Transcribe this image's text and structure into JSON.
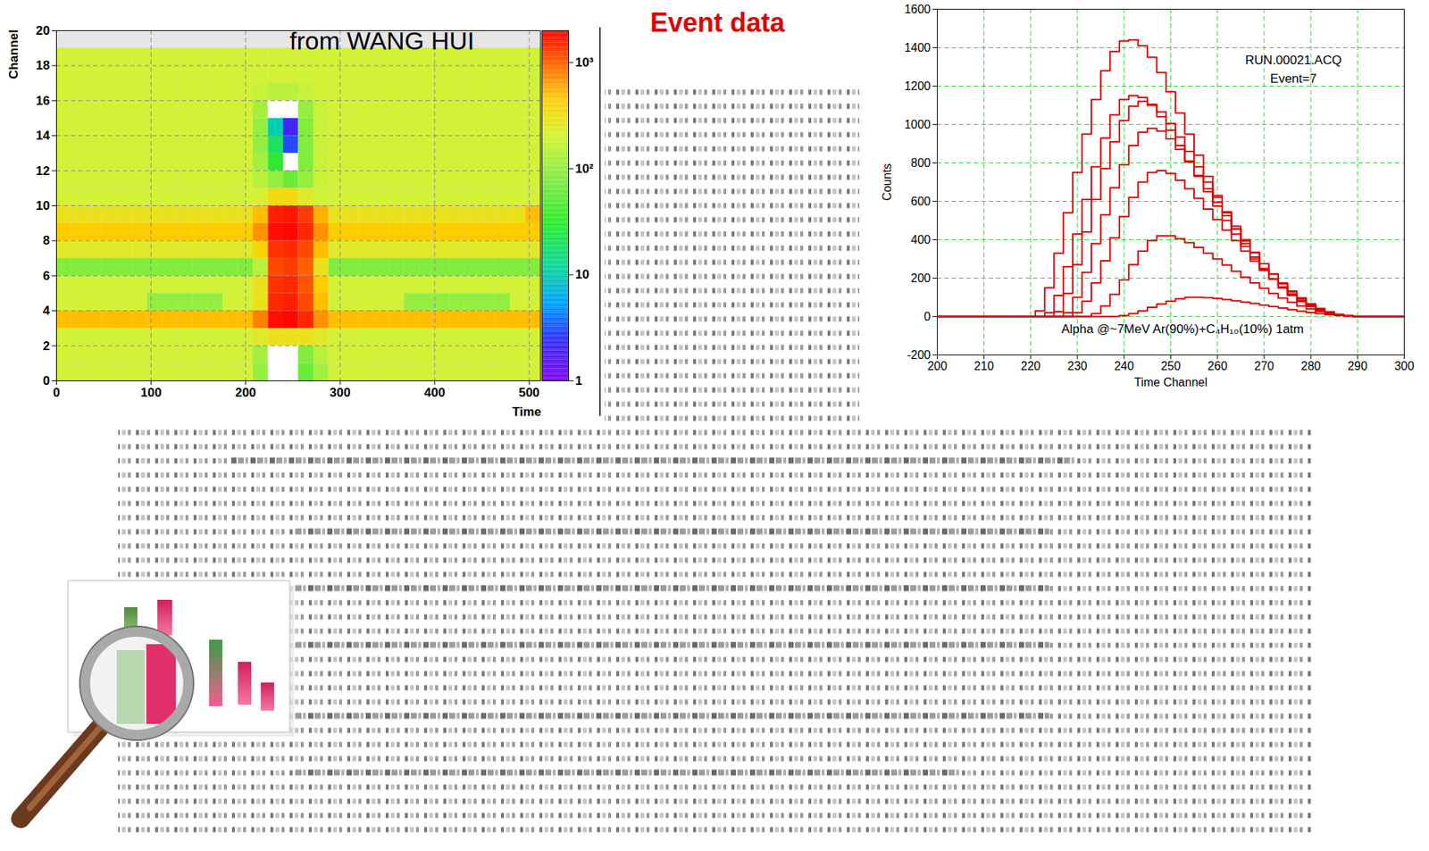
{
  "title": "Event data",
  "chart_data": [
    {
      "type": "heatmap",
      "annotation": "from WANG HUI",
      "x_label": "Time",
      "y_label": "Channel",
      "xlim": [
        0,
        512
      ],
      "xticks": [
        0,
        100,
        200,
        300,
        400,
        500
      ],
      "ylim": [
        0,
        20
      ],
      "yticks": [
        0,
        2,
        4,
        6,
        8,
        10,
        12,
        14,
        16,
        18,
        20
      ],
      "grid": true,
      "x_bins": [
        0,
        16,
        32,
        48,
        64,
        80,
        96,
        112,
        128,
        144,
        160,
        176,
        192,
        208,
        224,
        240,
        256,
        272,
        288,
        304,
        320,
        336,
        352,
        368,
        384,
        400,
        416,
        432,
        448,
        464,
        480,
        496,
        512
      ],
      "y_bins": [
        0,
        1,
        2,
        3,
        4,
        5,
        6,
        7,
        8,
        9,
        10,
        11,
        12,
        13,
        14,
        15,
        16,
        17,
        18,
        19
      ],
      "cells": [
        [
          200,
          200,
          200,
          200,
          200,
          200,
          200,
          200,
          200,
          200,
          200,
          200,
          200,
          100,
          0,
          0,
          60,
          120,
          200,
          200,
          200,
          200,
          200,
          200,
          200,
          200,
          200,
          200,
          200,
          200,
          200,
          200
        ],
        [
          200,
          200,
          200,
          200,
          200,
          200,
          200,
          200,
          200,
          200,
          200,
          200,
          200,
          120,
          0,
          0,
          80,
          150,
          200,
          200,
          200,
          200,
          200,
          200,
          200,
          200,
          200,
          200,
          200,
          200,
          200,
          200
        ],
        [
          200,
          200,
          200,
          200,
          200,
          200,
          200,
          200,
          200,
          200,
          200,
          200,
          200,
          250,
          300,
          300,
          300,
          250,
          200,
          200,
          200,
          200,
          200,
          200,
          200,
          200,
          200,
          200,
          200,
          200,
          200,
          200
        ],
        [
          500,
          500,
          500,
          500,
          500,
          500,
          500,
          500,
          500,
          500,
          500,
          500,
          500,
          800,
          1800,
          1900,
          1500,
          700,
          500,
          500,
          500,
          500,
          500,
          500,
          500,
          500,
          500,
          500,
          500,
          500,
          500,
          500
        ],
        [
          200,
          200,
          200,
          200,
          200,
          200,
          100,
          100,
          100,
          100,
          100,
          200,
          200,
          300,
          1500,
          1600,
          1200,
          500,
          200,
          200,
          200,
          200,
          200,
          100,
          100,
          100,
          100,
          100,
          100,
          100,
          200,
          200
        ],
        [
          200,
          200,
          200,
          200,
          200,
          200,
          200,
          200,
          200,
          200,
          200,
          200,
          200,
          300,
          1400,
          1500,
          1100,
          450,
          200,
          200,
          200,
          200,
          200,
          200,
          200,
          200,
          200,
          200,
          200,
          200,
          200,
          200
        ],
        [
          80,
          80,
          80,
          80,
          80,
          80,
          80,
          80,
          80,
          80,
          80,
          80,
          80,
          150,
          1200,
          1300,
          1000,
          300,
          80,
          80,
          80,
          80,
          80,
          80,
          80,
          80,
          80,
          80,
          80,
          80,
          80,
          80
        ],
        [
          250,
          250,
          250,
          250,
          250,
          250,
          250,
          250,
          250,
          250,
          250,
          250,
          250,
          400,
          1400,
          1500,
          1200,
          500,
          250,
          250,
          250,
          250,
          250,
          250,
          250,
          250,
          250,
          250,
          250,
          250,
          250,
          250
        ],
        [
          450,
          450,
          450,
          450,
          450,
          450,
          450,
          450,
          450,
          450,
          450,
          450,
          450,
          700,
          1800,
          1900,
          1500,
          700,
          450,
          450,
          450,
          450,
          450,
          450,
          450,
          450,
          450,
          450,
          450,
          450,
          450,
          450
        ],
        [
          300,
          300,
          300,
          300,
          300,
          300,
          300,
          300,
          300,
          300,
          300,
          300,
          300,
          500,
          1600,
          1700,
          1300,
          550,
          300,
          300,
          300,
          300,
          300,
          300,
          300,
          300,
          300,
          300,
          300,
          300,
          300,
          500
        ],
        [
          200,
          200,
          200,
          200,
          200,
          200,
          200,
          200,
          200,
          200,
          200,
          200,
          200,
          220,
          350,
          350,
          250,
          200,
          200,
          200,
          200,
          200,
          200,
          200,
          200,
          200,
          200,
          200,
          200,
          200,
          200,
          200
        ],
        [
          200,
          200,
          200,
          200,
          200,
          200,
          200,
          200,
          200,
          200,
          200,
          200,
          200,
          150,
          100,
          60,
          100,
          180,
          200,
          200,
          200,
          200,
          200,
          200,
          200,
          200,
          200,
          200,
          200,
          200,
          200,
          200
        ],
        [
          200,
          200,
          200,
          200,
          200,
          200,
          200,
          200,
          200,
          200,
          200,
          200,
          200,
          120,
          30,
          0,
          80,
          180,
          200,
          200,
          200,
          200,
          200,
          200,
          200,
          200,
          200,
          200,
          200,
          200,
          200,
          200
        ],
        [
          200,
          200,
          200,
          200,
          200,
          200,
          200,
          200,
          200,
          200,
          200,
          200,
          200,
          100,
          20,
          3,
          80,
          180,
          200,
          200,
          200,
          200,
          200,
          200,
          200,
          200,
          200,
          200,
          200,
          200,
          200,
          200
        ],
        [
          200,
          200,
          200,
          200,
          200,
          200,
          200,
          200,
          200,
          200,
          200,
          200,
          200,
          100,
          10,
          2,
          80,
          180,
          200,
          200,
          200,
          200,
          200,
          200,
          200,
          200,
          200,
          200,
          200,
          200,
          200,
          200
        ],
        [
          200,
          200,
          200,
          200,
          200,
          200,
          200,
          200,
          200,
          200,
          200,
          200,
          200,
          120,
          0,
          0,
          100,
          180,
          200,
          200,
          200,
          200,
          200,
          200,
          200,
          200,
          200,
          200,
          200,
          200,
          200,
          200
        ],
        [
          200,
          200,
          200,
          200,
          200,
          200,
          200,
          200,
          200,
          200,
          200,
          200,
          200,
          180,
          150,
          150,
          180,
          200,
          200,
          200,
          200,
          200,
          200,
          200,
          200,
          200,
          200,
          200,
          200,
          200,
          200,
          200
        ],
        [
          200,
          200,
          200,
          200,
          200,
          200,
          200,
          200,
          200,
          200,
          200,
          200,
          200,
          200,
          200,
          200,
          200,
          200,
          200,
          200,
          200,
          200,
          200,
          200,
          200,
          200,
          200,
          200,
          200,
          200,
          200,
          200
        ],
        [
          200,
          200,
          200,
          200,
          200,
          200,
          200,
          200,
          200,
          200,
          200,
          200,
          200,
          200,
          200,
          200,
          200,
          200,
          200,
          200,
          200,
          200,
          200,
          200,
          200,
          200,
          200,
          200,
          200,
          200,
          200,
          200
        ]
      ],
      "colorbar_lim": [
        1,
        2000
      ],
      "colorbar_ticks": [
        1,
        10,
        {
          "value": 100,
          "label": "10²"
        },
        {
          "value": 1000,
          "label": "10³"
        }
      ]
    },
    {
      "type": "line",
      "x_label": "Time Channel",
      "y_label": "Counts",
      "annotations": [
        "RUN.00021.ACQ",
        "Event=7",
        "Alpha @~7MeV Ar(90%)+C₄H₁₀(10%) 1atm"
      ],
      "xlim": [
        200,
        300
      ],
      "xticks": [
        200,
        210,
        220,
        230,
        240,
        250,
        260,
        270,
        280,
        290,
        300
      ],
      "ylim": [
        -200,
        1600
      ],
      "yticks": [
        -200,
        0,
        200,
        400,
        600,
        800,
        1000,
        1200,
        1400,
        1600
      ],
      "grid": true,
      "x": [
        200,
        202,
        204,
        206,
        208,
        210,
        212,
        214,
        216,
        218,
        220,
        222,
        224,
        226,
        228,
        230,
        232,
        234,
        236,
        238,
        240,
        242,
        244,
        246,
        248,
        250,
        252,
        254,
        256,
        258,
        260,
        262,
        264,
        266,
        268,
        270,
        272,
        274,
        276,
        278,
        280,
        282,
        284,
        286,
        288,
        290,
        292,
        294,
        296,
        298,
        300
      ],
      "series": [
        {
          "color": "#e00000",
          "values": [
            0,
            0,
            0,
            0,
            0,
            0,
            0,
            0,
            0,
            0,
            0,
            30,
            150,
            330,
            540,
            750,
            950,
            1130,
            1280,
            1380,
            1435,
            1440,
            1410,
            1350,
            1270,
            1170,
            1060,
            950,
            840,
            730,
            630,
            540,
            455,
            380,
            310,
            250,
            195,
            150,
            110,
            78,
            52,
            32,
            18,
            8,
            3,
            0,
            0,
            0,
            0,
            0,
            0
          ]
        },
        {
          "color": "#e00000",
          "values": [
            0,
            0,
            0,
            0,
            0,
            0,
            0,
            0,
            0,
            0,
            0,
            0,
            20,
            110,
            260,
            430,
            610,
            780,
            930,
            1050,
            1130,
            1150,
            1140,
            1100,
            1040,
            970,
            890,
            810,
            730,
            650,
            575,
            500,
            430,
            365,
            300,
            245,
            195,
            150,
            112,
            80,
            54,
            34,
            20,
            10,
            4,
            0,
            0,
            0,
            0,
            0,
            0
          ]
        },
        {
          "color": "#e00000",
          "values": [
            0,
            0,
            0,
            0,
            0,
            0,
            0,
            0,
            0,
            0,
            0,
            0,
            0,
            25,
            120,
            270,
            440,
            610,
            770,
            910,
            1020,
            1095,
            1120,
            1105,
            1065,
            1005,
            935,
            860,
            780,
            700,
            620,
            545,
            470,
            400,
            335,
            275,
            220,
            170,
            128,
            92,
            62,
            40,
            23,
            11,
            4,
            0,
            0,
            0,
            0,
            0,
            0
          ]
        },
        {
          "color": "#e00000",
          "values": [
            0,
            0,
            0,
            0,
            0,
            0,
            0,
            0,
            0,
            0,
            0,
            0,
            0,
            0,
            20,
            100,
            230,
            380,
            530,
            670,
            790,
            890,
            960,
            980,
            965,
            925,
            870,
            805,
            735,
            665,
            595,
            525,
            458,
            393,
            332,
            275,
            222,
            175,
            133,
            97,
            66,
            42,
            24,
            12,
            5,
            0,
            0,
            0,
            0,
            0,
            0
          ]
        },
        {
          "color": "#e00000",
          "values": [
            0,
            0,
            0,
            0,
            0,
            0,
            0,
            0,
            0,
            0,
            0,
            0,
            0,
            0,
            0,
            20,
            80,
            175,
            290,
            410,
            520,
            620,
            700,
            750,
            760,
            745,
            710,
            665,
            615,
            560,
            505,
            450,
            395,
            340,
            288,
            240,
            195,
            154,
            117,
            85,
            58,
            37,
            21,
            10,
            4,
            0,
            0,
            0,
            0,
            0,
            0
          ]
        },
        {
          "color": "#e00000",
          "values": [
            0,
            0,
            0,
            0,
            0,
            0,
            0,
            0,
            0,
            0,
            0,
            0,
            0,
            0,
            0,
            0,
            0,
            15,
            55,
            115,
            190,
            270,
            340,
            395,
            420,
            420,
            405,
            385,
            360,
            330,
            300,
            268,
            236,
            205,
            175,
            147,
            120,
            96,
            74,
            55,
            39,
            26,
            15,
            8,
            3,
            0,
            0,
            0,
            0,
            0,
            0
          ]
        },
        {
          "color": "#e00000",
          "values": [
            0,
            0,
            0,
            0,
            0,
            0,
            0,
            0,
            0,
            0,
            0,
            0,
            0,
            0,
            0,
            0,
            0,
            0,
            0,
            0,
            5,
            15,
            30,
            48,
            65,
            80,
            92,
            100,
            100,
            98,
            94,
            88,
            82,
            75,
            68,
            60,
            52,
            44,
            36,
            28,
            21,
            15,
            10,
            6,
            3,
            0,
            0,
            0,
            0,
            0,
            0
          ]
        }
      ]
    }
  ]
}
